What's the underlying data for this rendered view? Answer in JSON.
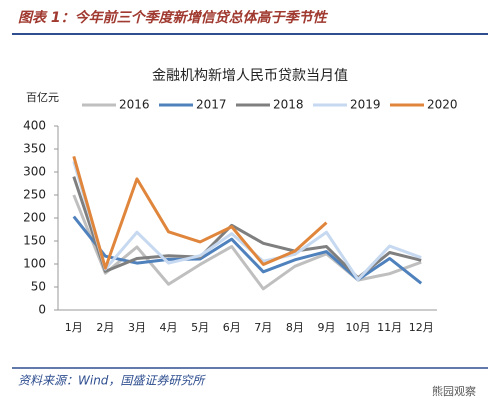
{
  "header": {
    "title": "图表 1：今年前三个季度新增信贷总体高于季节性"
  },
  "chart_data": {
    "type": "line",
    "title": "金融机构新增人民币贷款当月值",
    "y_label": "百亿元",
    "categories": [
      "1月",
      "2月",
      "3月",
      "4月",
      "5月",
      "6月",
      "7月",
      "8月",
      "9月",
      "10月",
      "11月",
      "12月"
    ],
    "series": [
      {
        "name": "2016",
        "color": "#bfbfbf",
        "values": [
          250,
          80,
          137,
          56,
          99,
          138,
          46,
          95,
          122,
          65,
          79,
          104
        ]
      },
      {
        "name": "2017",
        "color": "#4f81bd",
        "values": [
          203,
          117,
          102,
          110,
          111,
          154,
          83,
          109,
          127,
          66,
          112,
          58
        ]
      },
      {
        "name": "2018",
        "color": "#7f7f7f",
        "values": [
          290,
          84,
          112,
          118,
          115,
          184,
          145,
          128,
          138,
          70,
          125,
          108
        ]
      },
      {
        "name": "2019",
        "color": "#c6d9f0",
        "values": [
          323,
          89,
          169,
          102,
          118,
          166,
          106,
          121,
          169,
          66,
          139,
          114
        ]
      },
      {
        "name": "2020",
        "color": "#e0863c",
        "values": [
          334,
          91,
          285,
          170,
          148,
          181,
          99,
          128,
          190,
          null,
          null,
          null
        ]
      }
    ],
    "ylim": [
      0,
      400
    ],
    "yticks": [
      0,
      50,
      100,
      150,
      200,
      250,
      300,
      350,
      400
    ]
  },
  "source": "资料来源：Wind，国盛证券研究所",
  "watermark": "熊园观察"
}
